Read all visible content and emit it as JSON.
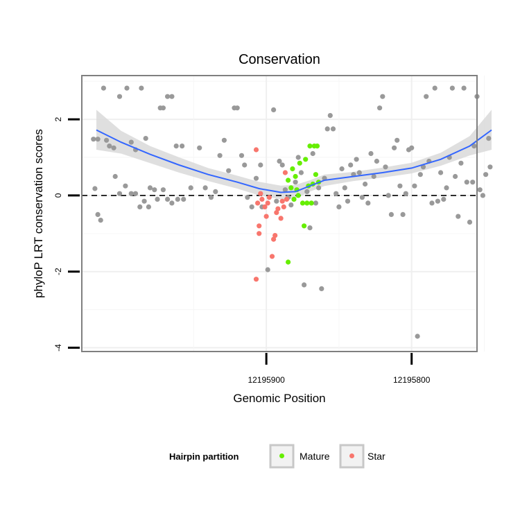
{
  "chart_data": {
    "type": "scatter",
    "title": "Conservation",
    "xlabel": "Genomic Position",
    "ylabel": "phyloP LRT conservation scores",
    "x_reversed": true,
    "xlim": [
      12196027,
      12195755
    ],
    "ylim": [
      -4.1,
      3.15
    ],
    "x_ticks": [
      12195900,
      12195800
    ],
    "x_tick_labels": [
      "12195900",
      "12195800"
    ],
    "y_ticks": [
      -4,
      -2,
      0,
      2
    ],
    "y_tick_labels": [
      "-4",
      "-2",
      "0",
      "2"
    ],
    "hline": 0,
    "legend": {
      "title": "Hairpin partition",
      "position": "bottom",
      "entries": [
        {
          "label": "Mature",
          "color": "#66ee00"
        },
        {
          "label": "Star",
          "color": "#f8766d"
        }
      ]
    },
    "colors": {
      "other": "#999999",
      "Mature": "#66ee00",
      "Star": "#f8766d",
      "smooth": "#3366ff",
      "ribbon": "#d9d9d9"
    },
    "series": [
      {
        "name": "Other",
        "points": [
          [
            12196019,
            1.48
          ],
          [
            12196016,
            1.48
          ],
          [
            12196012,
            2.82
          ],
          [
            12196010,
            1.45
          ],
          [
            12196008,
            1.3
          ],
          [
            12196005,
            1.25
          ],
          [
            12196001,
            2.6
          ],
          [
            12195996,
            2.82
          ],
          [
            12195993,
            1.4
          ],
          [
            12195990,
            1.2
          ],
          [
            12195986,
            2.82
          ],
          [
            12195983,
            1.5
          ],
          [
            12195980,
            0.2
          ],
          [
            12195977,
            0.15
          ],
          [
            12195973,
            2.3
          ],
          [
            12195971,
            2.3
          ],
          [
            12195968,
            2.6
          ],
          [
            12195965,
            2.6
          ],
          [
            12195962,
            1.3
          ],
          [
            12195958,
            1.3
          ],
          [
            12196018,
            0.18
          ],
          [
            12196016,
            -0.5
          ],
          [
            12196014,
            -0.65
          ],
          [
            12196004,
            0.5
          ],
          [
            12196001,
            0.05
          ],
          [
            12195997,
            0.25
          ],
          [
            12195993,
            0.05
          ],
          [
            12195990,
            0.05
          ],
          [
            12195987,
            -0.3
          ],
          [
            12195984,
            -0.15
          ],
          [
            12195981,
            -0.3
          ],
          [
            12195975,
            -0.1
          ],
          [
            12195971,
            0.15
          ],
          [
            12195968,
            -0.1
          ],
          [
            12195965,
            -0.2
          ],
          [
            12195961,
            -0.1
          ],
          [
            12195957,
            -0.1
          ],
          [
            12195952,
            0.2
          ],
          [
            12195946,
            1.25
          ],
          [
            12195942,
            0.2
          ],
          [
            12195938,
            -0.05
          ],
          [
            12195935,
            0.1
          ],
          [
            12195932,
            1.05
          ],
          [
            12195929,
            1.45
          ],
          [
            12195926,
            0.65
          ],
          [
            12195922,
            2.3
          ],
          [
            12195920,
            2.3
          ],
          [
            12195917,
            1.05
          ],
          [
            12195915,
            0.8
          ],
          [
            12195913,
            -0.05
          ],
          [
            12195910,
            -0.3
          ],
          [
            12195907,
            0.45
          ],
          [
            12195904,
            0.8
          ],
          [
            12195903,
            -0.3
          ],
          [
            12195899,
            -1.95
          ],
          [
            12195895,
            2.25
          ],
          [
            12195893,
            -0.15
          ],
          [
            12195891,
            0.9
          ],
          [
            12195889,
            0.8
          ],
          [
            12195887,
            0.15
          ],
          [
            12195885,
            -0.05
          ],
          [
            12195883,
            -0.25
          ],
          [
            12195880,
            0.35
          ],
          [
            12195878,
            1.0
          ],
          [
            12195876,
            0.6
          ],
          [
            12195874,
            -2.35
          ],
          [
            12195872,
            0.1
          ],
          [
            12195870,
            -0.85
          ],
          [
            12195868,
            1.1
          ],
          [
            12195866,
            -0.2
          ],
          [
            12195864,
            0.2
          ],
          [
            12195862,
            -2.45
          ],
          [
            12195860,
            0.45
          ],
          [
            12195858,
            1.75
          ],
          [
            12195856,
            2.1
          ],
          [
            12195854,
            1.75
          ],
          [
            12195852,
            0.05
          ],
          [
            12195850,
            -0.3
          ],
          [
            12195848,
            0.7
          ],
          [
            12195846,
            0.2
          ],
          [
            12195844,
            -0.15
          ],
          [
            12195842,
            0.8
          ],
          [
            12195840,
            0.55
          ],
          [
            12195838,
            0.95
          ],
          [
            12195836,
            0.6
          ],
          [
            12195834,
            -0.05
          ],
          [
            12195832,
            0.3
          ],
          [
            12195830,
            -0.2
          ],
          [
            12195828,
            1.1
          ],
          [
            12195826,
            0.5
          ],
          [
            12195824,
            0.9
          ],
          [
            12195822,
            2.3
          ],
          [
            12195820,
            2.6
          ],
          [
            12195818,
            0.75
          ],
          [
            12195816,
            0.0
          ],
          [
            12195814,
            -0.5
          ],
          [
            12195812,
            1.25
          ],
          [
            12195810,
            1.45
          ],
          [
            12195808,
            0.25
          ],
          [
            12195806,
            -0.5
          ],
          [
            12195804,
            0.05
          ],
          [
            12195802,
            1.2
          ],
          [
            12195800,
            1.25
          ],
          [
            12195798,
            0.25
          ],
          [
            12195796,
            -3.7
          ],
          [
            12195794,
            0.55
          ],
          [
            12195792,
            0.75
          ],
          [
            12195790,
            2.6
          ],
          [
            12195788,
            0.9
          ],
          [
            12195786,
            -0.2
          ],
          [
            12195784,
            2.82
          ],
          [
            12195782,
            -0.15
          ],
          [
            12195780,
            0.6
          ],
          [
            12195778,
            -0.1
          ],
          [
            12195776,
            0.2
          ],
          [
            12195774,
            1.0
          ],
          [
            12195772,
            2.82
          ],
          [
            12195770,
            0.5
          ],
          [
            12195768,
            -0.55
          ],
          [
            12195766,
            0.85
          ],
          [
            12195764,
            2.82
          ],
          [
            12195762,
            0.35
          ],
          [
            12195760,
            -0.7
          ],
          [
            12195758,
            0.35
          ],
          [
            12195757,
            1.3
          ],
          [
            12195755,
            2.6
          ],
          [
            12195753,
            0.15
          ],
          [
            12195751,
            0.0
          ],
          [
            12195749,
            0.55
          ],
          [
            12195747,
            1.5
          ],
          [
            12195746,
            0.75
          ]
        ]
      },
      {
        "name": "Mature",
        "points": [
          [
            12195885,
            -1.75
          ],
          [
            12195885,
            0.4
          ],
          [
            12195883,
            0.2
          ],
          [
            12195882,
            0.7
          ],
          [
            12195881,
            -0.1
          ],
          [
            12195880,
            0.5
          ],
          [
            12195879,
            0.15
          ],
          [
            12195878,
            0.0
          ],
          [
            12195877,
            0.85
          ],
          [
            12195875,
            -0.2
          ],
          [
            12195874,
            -0.8
          ],
          [
            12195873,
            0.95
          ],
          [
            12195872,
            -0.2
          ],
          [
            12195871,
            0.25
          ],
          [
            12195870,
            1.3
          ],
          [
            12195869,
            -0.2
          ],
          [
            12195868,
            0.3
          ],
          [
            12195867,
            1.3
          ],
          [
            12195866,
            0.55
          ],
          [
            12195865,
            1.3
          ],
          [
            12195864,
            0.35
          ]
        ]
      },
      {
        "name": "Star",
        "points": [
          [
            12195907,
            1.2
          ],
          [
            12195907,
            -2.2
          ],
          [
            12195906,
            -0.2
          ],
          [
            12195905,
            -1.0
          ],
          [
            12195905,
            -0.8
          ],
          [
            12195904,
            0.05
          ],
          [
            12195903,
            -0.1
          ],
          [
            12195901,
            -0.3
          ],
          [
            12195900,
            -0.55
          ],
          [
            12195899,
            -0.2
          ],
          [
            12195898,
            -0.05
          ],
          [
            12195896,
            -1.6
          ],
          [
            12195895,
            -1.15
          ],
          [
            12195894,
            -1.05
          ],
          [
            12195893,
            -0.45
          ],
          [
            12195892,
            -0.35
          ],
          [
            12195890,
            -0.6
          ],
          [
            12195889,
            -0.15
          ],
          [
            12195888,
            -0.3
          ],
          [
            12195887,
            0.6
          ],
          [
            12195886,
            -0.1
          ]
        ]
      }
    ],
    "smooth_line": {
      "x": [
        12196017,
        12196000,
        12195980,
        12195960,
        12195940,
        12195920,
        12195905,
        12195890,
        12195880,
        12195870,
        12195860,
        12195840,
        12195820,
        12195800,
        12195780,
        12195760,
        12195745
      ],
      "y": [
        1.72,
        1.4,
        1.08,
        0.8,
        0.55,
        0.35,
        0.18,
        0.08,
        0.1,
        0.25,
        0.4,
        0.5,
        0.6,
        0.72,
        0.95,
        1.3,
        1.72
      ],
      "ci_low": [
        1.2,
        1.1,
        0.85,
        0.6,
        0.38,
        0.18,
        0.0,
        -0.1,
        -0.08,
        0.1,
        0.25,
        0.38,
        0.47,
        0.58,
        0.78,
        1.05,
        1.2
      ],
      "ci_high": [
        2.25,
        1.7,
        1.3,
        1.0,
        0.72,
        0.52,
        0.36,
        0.26,
        0.28,
        0.4,
        0.55,
        0.62,
        0.73,
        0.86,
        1.12,
        1.56,
        2.25
      ]
    }
  }
}
